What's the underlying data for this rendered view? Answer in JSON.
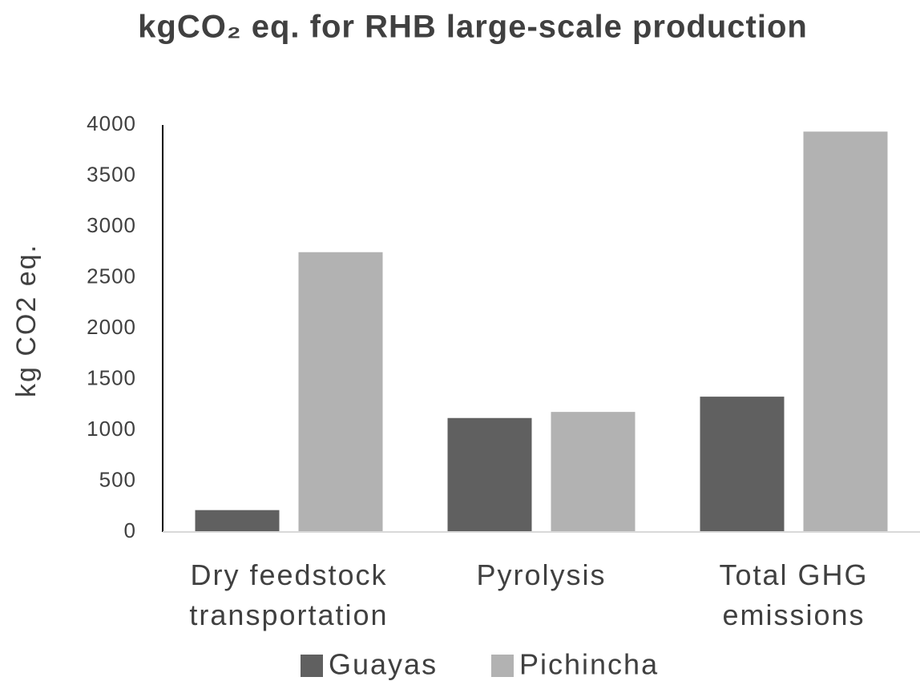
{
  "chart_data": {
    "type": "bar",
    "title": "kgCO₂ eq. for RHB large-scale production",
    "y_axis_label": "kg CO2 eq.",
    "categories": [
      "Dry feedstock transportation",
      "Pyrolysis",
      "Total GHG emissions"
    ],
    "series": [
      {
        "name": "Guayas",
        "color": "#606060",
        "values": [
          215,
          1120,
          1330
        ]
      },
      {
        "name": "Pichincha",
        "color": "#b2b2b2",
        "values": [
          2750,
          1180,
          3935
        ]
      }
    ],
    "ylim": [
      0,
      4000
    ],
    "yticks": [
      0,
      500,
      1000,
      1500,
      2000,
      2500,
      3000,
      3500,
      4000
    ],
    "grid": false,
    "legend": "bottom"
  }
}
